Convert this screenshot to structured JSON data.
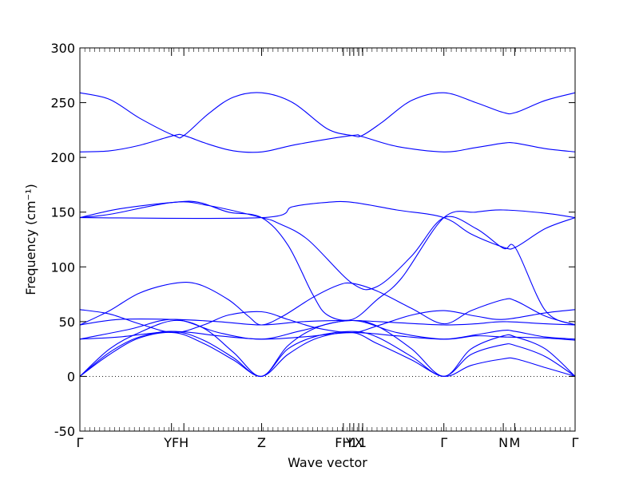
{
  "chart_data": {
    "type": "line",
    "title": "",
    "xlabel": "Wave vector",
    "ylabel": "Frequency (cm⁻¹)",
    "ylim": [
      -50,
      300
    ],
    "yticks": [
      -50,
      0,
      50,
      100,
      150,
      200,
      250,
      300
    ],
    "grid": false,
    "zero_line": {
      "y": 0,
      "style": "dotted"
    },
    "line_color": "#0000ff",
    "xticks": [
      {
        "x": 0.0,
        "label": "Γ"
      },
      {
        "x": 0.185,
        "label": "YF"
      },
      {
        "x": 0.21,
        "label": "H"
      },
      {
        "x": 0.367,
        "label": "Z"
      },
      {
        "x": 0.532,
        "label": "FH"
      },
      {
        "x": 0.545,
        "label": "Y"
      },
      {
        "x": 0.553,
        "label": "1"
      },
      {
        "x": 0.563,
        "label": "X"
      },
      {
        "x": 0.571,
        "label": "1"
      },
      {
        "x": 0.735,
        "label": "Γ"
      },
      {
        "x": 0.855,
        "label": "N"
      },
      {
        "x": 0.878,
        "label": "M"
      },
      {
        "x": 1.0,
        "label": "Γ"
      }
    ],
    "series": [
      {
        "values": [
          [
            0,
            0
          ],
          [
            0.06,
            20
          ],
          [
            0.12,
            35
          ],
          [
            0.19,
            40
          ],
          [
            0.25,
            30
          ],
          [
            0.31,
            15
          ],
          [
            0.367,
            0
          ],
          [
            0.42,
            20
          ],
          [
            0.48,
            35
          ],
          [
            0.55,
            40
          ],
          [
            0.6,
            30
          ],
          [
            0.67,
            15
          ],
          [
            0.735,
            0
          ],
          [
            0.79,
            10
          ],
          [
            0.855,
            16
          ],
          [
            0.88,
            16
          ],
          [
            0.94,
            8
          ],
          [
            1.0,
            0
          ]
        ]
      },
      {
        "values": [
          [
            0,
            0
          ],
          [
            0.06,
            22
          ],
          [
            0.12,
            36
          ],
          [
            0.19,
            41
          ],
          [
            0.25,
            33
          ],
          [
            0.31,
            17
          ],
          [
            0.367,
            0
          ],
          [
            0.42,
            25
          ],
          [
            0.48,
            37
          ],
          [
            0.55,
            41
          ],
          [
            0.6,
            36
          ],
          [
            0.67,
            18
          ],
          [
            0.735,
            0
          ],
          [
            0.79,
            20
          ],
          [
            0.855,
            29
          ],
          [
            0.88,
            28
          ],
          [
            0.94,
            18
          ],
          [
            1.0,
            0
          ]
        ]
      },
      {
        "values": [
          [
            0,
            0
          ],
          [
            0.06,
            25
          ],
          [
            0.12,
            40
          ],
          [
            0.19,
            51
          ],
          [
            0.25,
            44
          ],
          [
            0.31,
            22
          ],
          [
            0.367,
            0
          ],
          [
            0.42,
            28
          ],
          [
            0.48,
            45
          ],
          [
            0.55,
            51
          ],
          [
            0.6,
            46
          ],
          [
            0.67,
            25
          ],
          [
            0.735,
            0
          ],
          [
            0.79,
            25
          ],
          [
            0.855,
            37
          ],
          [
            0.88,
            36
          ],
          [
            0.94,
            25
          ],
          [
            1.0,
            0
          ]
        ]
      },
      {
        "values": [
          [
            0,
            34
          ],
          [
            0.08,
            36
          ],
          [
            0.19,
            41
          ],
          [
            0.28,
            37
          ],
          [
            0.367,
            34
          ],
          [
            0.45,
            36
          ],
          [
            0.55,
            40
          ],
          [
            0.64,
            37
          ],
          [
            0.735,
            34
          ],
          [
            0.8,
            38
          ],
          [
            0.855,
            42
          ],
          [
            0.88,
            41
          ],
          [
            0.94,
            36
          ],
          [
            1.0,
            34
          ]
        ]
      },
      {
        "values": [
          [
            0,
            34
          ],
          [
            0.1,
            43
          ],
          [
            0.19,
            52
          ],
          [
            0.28,
            40
          ],
          [
            0.367,
            34
          ],
          [
            0.45,
            42
          ],
          [
            0.55,
            51
          ],
          [
            0.64,
            40
          ],
          [
            0.735,
            34
          ],
          [
            0.8,
            37
          ],
          [
            0.855,
            36
          ],
          [
            0.94,
            35
          ],
          [
            1.0,
            33
          ]
        ]
      },
      {
        "values": [
          [
            0,
            61
          ],
          [
            0.06,
            57
          ],
          [
            0.12,
            48
          ],
          [
            0.19,
            40
          ],
          [
            0.25,
            47
          ],
          [
            0.3,
            56
          ],
          [
            0.367,
            59
          ],
          [
            0.42,
            52
          ],
          [
            0.48,
            44
          ],
          [
            0.55,
            40
          ],
          [
            0.6,
            46
          ],
          [
            0.67,
            56
          ],
          [
            0.735,
            60
          ],
          [
            0.8,
            55
          ],
          [
            0.855,
            52
          ],
          [
            0.94,
            58
          ],
          [
            1.0,
            61
          ]
        ]
      },
      {
        "values": [
          [
            0,
            47
          ],
          [
            0.06,
            60
          ],
          [
            0.12,
            76
          ],
          [
            0.19,
            85
          ],
          [
            0.24,
            84
          ],
          [
            0.3,
            70
          ],
          [
            0.34,
            55
          ],
          [
            0.367,
            47
          ],
          [
            0.41,
            55
          ],
          [
            0.47,
            72
          ],
          [
            0.52,
            83
          ],
          [
            0.55,
            85
          ],
          [
            0.6,
            78
          ],
          [
            0.67,
            62
          ],
          [
            0.735,
            48
          ],
          [
            0.79,
            60
          ],
          [
            0.855,
            70
          ],
          [
            0.88,
            69
          ],
          [
            0.94,
            55
          ],
          [
            1.0,
            47
          ]
        ]
      },
      {
        "values": [
          [
            0,
            47
          ],
          [
            0.08,
            52
          ],
          [
            0.19,
            52
          ],
          [
            0.28,
            50
          ],
          [
            0.367,
            47
          ],
          [
            0.45,
            50
          ],
          [
            0.55,
            51
          ],
          [
            0.64,
            49
          ],
          [
            0.735,
            47
          ],
          [
            0.8,
            48
          ],
          [
            0.855,
            50
          ],
          [
            0.94,
            48
          ],
          [
            1.0,
            47
          ]
        ]
      },
      {
        "values": [
          [
            0,
            145
          ],
          [
            0.08,
            153
          ],
          [
            0.19,
            159
          ],
          [
            0.24,
            159
          ],
          [
            0.3,
            150
          ],
          [
            0.367,
            145
          ],
          [
            0.42,
            120
          ],
          [
            0.47,
            75
          ],
          [
            0.5,
            56
          ],
          [
            0.55,
            52
          ],
          [
            0.6,
            70
          ],
          [
            0.65,
            90
          ],
          [
            0.735,
            145
          ],
          [
            0.8,
            150
          ],
          [
            0.855,
            152
          ],
          [
            0.94,
            149
          ],
          [
            1.0,
            145
          ]
        ]
      },
      {
        "values": [
          [
            0,
            145
          ],
          [
            0.06,
            148
          ],
          [
            0.19,
            159
          ],
          [
            0.26,
            156
          ],
          [
            0.367,
            145
          ],
          [
            0.4,
            140
          ],
          [
            0.46,
            125
          ],
          [
            0.55,
            85
          ],
          [
            0.6,
            82
          ],
          [
            0.67,
            110
          ],
          [
            0.735,
            145
          ],
          [
            0.8,
            135
          ],
          [
            0.855,
            117
          ],
          [
            0.88,
            117
          ],
          [
            0.94,
            60
          ],
          [
            1.0,
            47
          ]
        ]
      },
      {
        "values": [
          [
            0,
            145
          ],
          [
            0.367,
            145
          ],
          [
            0.43,
            155
          ],
          [
            0.5,
            159
          ],
          [
            0.55,
            159
          ],
          [
            0.64,
            152
          ],
          [
            0.735,
            145
          ],
          [
            0.79,
            130
          ],
          [
            0.855,
            118
          ],
          [
            0.88,
            118
          ],
          [
            0.94,
            135
          ],
          [
            1.0,
            145
          ]
        ]
      },
      {
        "values": [
          [
            0,
            205
          ],
          [
            0.06,
            206
          ],
          [
            0.12,
            211
          ],
          [
            0.19,
            220
          ],
          [
            0.21,
            220
          ],
          [
            0.26,
            212
          ],
          [
            0.31,
            206
          ],
          [
            0.367,
            205
          ],
          [
            0.44,
            212
          ],
          [
            0.55,
            220
          ],
          [
            0.57,
            219
          ],
          [
            0.64,
            210
          ],
          [
            0.735,
            205
          ],
          [
            0.8,
            209
          ],
          [
            0.855,
            213
          ],
          [
            0.88,
            213
          ],
          [
            0.94,
            208
          ],
          [
            1.0,
            205
          ]
        ]
      },
      {
        "values": [
          [
            0,
            259
          ],
          [
            0.06,
            253
          ],
          [
            0.12,
            236
          ],
          [
            0.19,
            220
          ],
          [
            0.21,
            220
          ],
          [
            0.26,
            240
          ],
          [
            0.31,
            255
          ],
          [
            0.367,
            259
          ],
          [
            0.43,
            250
          ],
          [
            0.5,
            226
          ],
          [
            0.55,
            220
          ],
          [
            0.57,
            220
          ],
          [
            0.61,
            232
          ],
          [
            0.67,
            252
          ],
          [
            0.735,
            259
          ],
          [
            0.8,
            250
          ],
          [
            0.855,
            241
          ],
          [
            0.88,
            241
          ],
          [
            0.94,
            252
          ],
          [
            1.0,
            259
          ]
        ]
      }
    ]
  }
}
